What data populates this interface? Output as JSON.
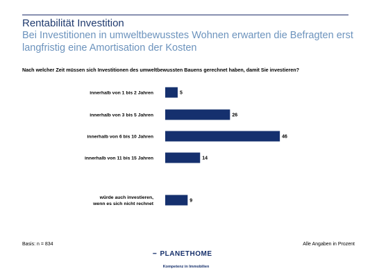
{
  "header": {
    "title": "Rentabilität Investition",
    "subtitle": "Bei Investitionen in umweltbewusstes Wohnen erwarten die Befragten erst langfristig eine Amortisation der Kosten"
  },
  "question": "Nach welcher Zeit müssen sich Investitionen des umweltbewussten Bauens gerechnet haben, damit Sie investieren?",
  "chart_data": {
    "type": "bar",
    "orientation": "horizontal",
    "categories": [
      "innerhalb von 1 bis 2 Jahren",
      "innerhalb von 3 bis 5 Jahren",
      "innerhalb von 6 bis 10 Jahren",
      "innerhalb von 11 bis 15 Jahren",
      "würde auch investieren, wenn es sich nicht rechnet"
    ],
    "values": [
      5,
      26,
      46,
      14,
      9
    ],
    "bar_color": "#15306e",
    "grid": false,
    "legend": "none"
  },
  "footer": {
    "basis": "Basis: n = 834",
    "note": "Alle Angaben in Prozent"
  },
  "logo": {
    "name": "PLANETHOME",
    "tagline": "Kompetenz in Immobilien",
    "color": "#16306b"
  }
}
